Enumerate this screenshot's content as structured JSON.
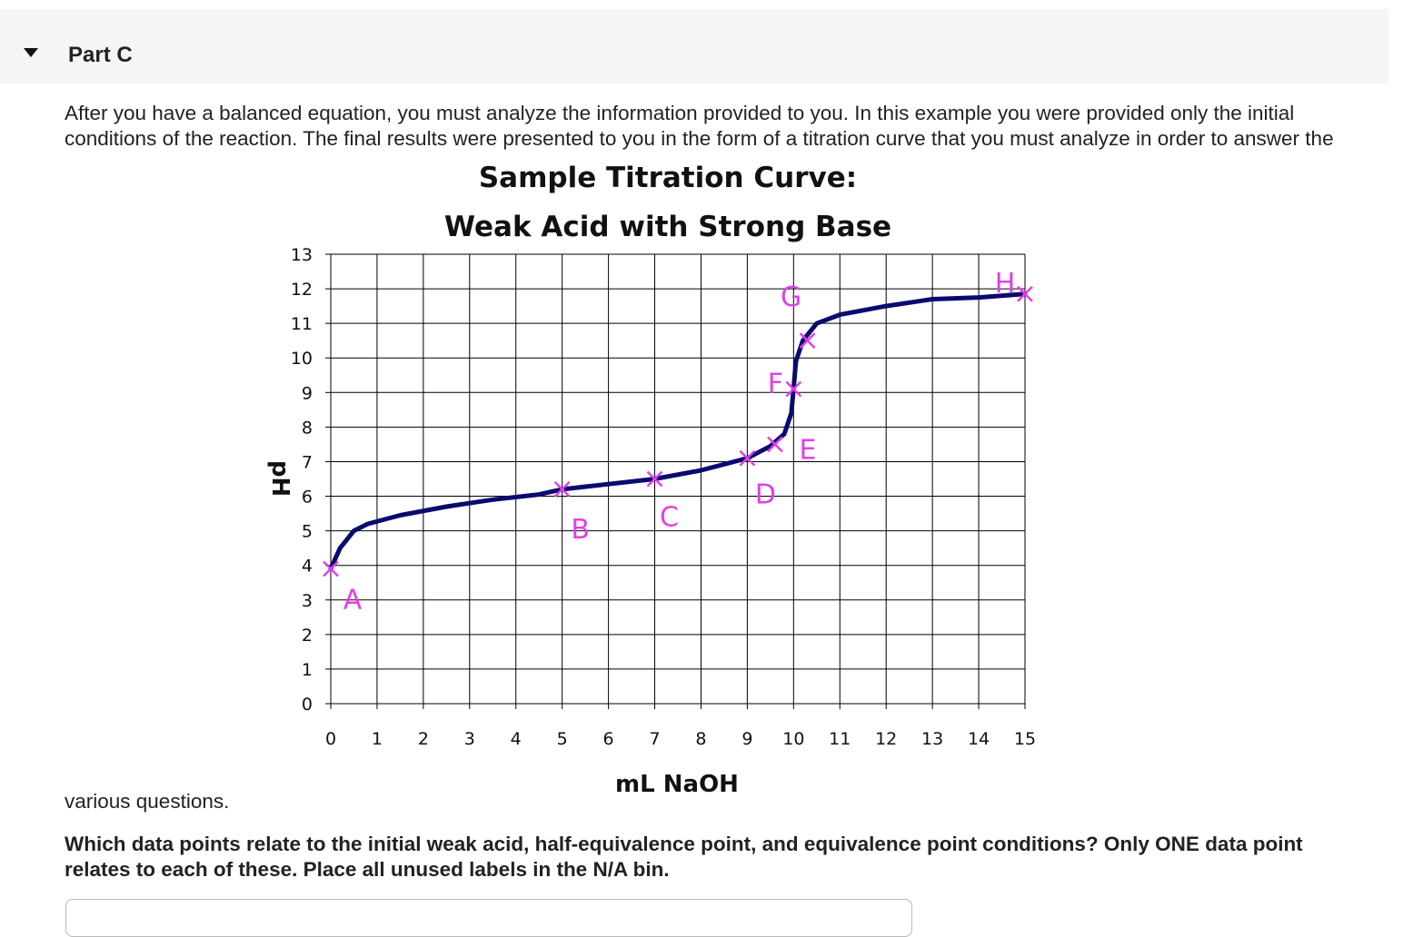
{
  "part": {
    "title": "Part C"
  },
  "intro": {
    "line1": "After you have a balanced equation, you must analyze the information provided to you.  In this example you were provided only the initial",
    "line2": "conditions of the reaction. The final results were presented to you in the form of a titration curve that you must analyze in order to answer the",
    "continuation": "various questions."
  },
  "question": {
    "line1": "Which data points relate to the initial weak acid, half-equivalence point, and equivalence point conditions? Only ONE data point",
    "line2": "relates to each of these. Place all unused labels in the N/A bin."
  },
  "colors": {
    "curve": "#0a0a6e",
    "marker": "#e040e8",
    "label": "#e040e8",
    "grid": "#000000"
  },
  "chart_data": {
    "type": "line",
    "title": "Sample Titration Curve:",
    "subtitle": "Weak Acid with Strong Base",
    "xlabel": "mL NaOH",
    "ylabel": "pH",
    "xlim": [
      0,
      15
    ],
    "ylim": [
      0,
      13
    ],
    "grid": true,
    "x_ticks": [
      "0",
      "1",
      "2",
      "3",
      "4",
      "5",
      "6",
      "7",
      "8",
      "9",
      "10",
      "11",
      "12",
      "13",
      "14",
      "15"
    ],
    "y_ticks": [
      "0",
      "1",
      "2",
      "3",
      "4",
      "5",
      "6",
      "7",
      "8",
      "9",
      "10",
      "11",
      "12",
      "13"
    ],
    "curve": {
      "x": [
        0,
        0.2,
        0.5,
        0.8,
        1.5,
        2.5,
        3.5,
        4.5,
        5.0,
        6.0,
        7.0,
        8.0,
        9.0,
        9.5,
        9.8,
        9.95,
        10.0,
        10.05,
        10.2,
        10.5,
        11,
        12,
        13,
        14,
        15
      ],
      "y": [
        3.9,
        4.5,
        5.0,
        5.2,
        5.45,
        5.7,
        5.9,
        6.05,
        6.2,
        6.35,
        6.5,
        6.75,
        7.1,
        7.45,
        7.8,
        8.4,
        9.1,
        9.9,
        10.5,
        11.0,
        11.25,
        11.5,
        11.7,
        11.75,
        11.85
      ]
    },
    "points": [
      {
        "label": "A",
        "x": 0.0,
        "y": 3.9
      },
      {
        "label": "B",
        "x": 5.0,
        "y": 6.2
      },
      {
        "label": "C",
        "x": 7.0,
        "y": 6.5
      },
      {
        "label": "D",
        "x": 9.0,
        "y": 7.1
      },
      {
        "label": "E",
        "x": 9.6,
        "y": 7.5
      },
      {
        "label": "F",
        "x": 10.0,
        "y": 9.1
      },
      {
        "label": "G",
        "x": 10.3,
        "y": 10.5
      },
      {
        "label": "H",
        "x": 15.0,
        "y": 11.85
      }
    ]
  }
}
